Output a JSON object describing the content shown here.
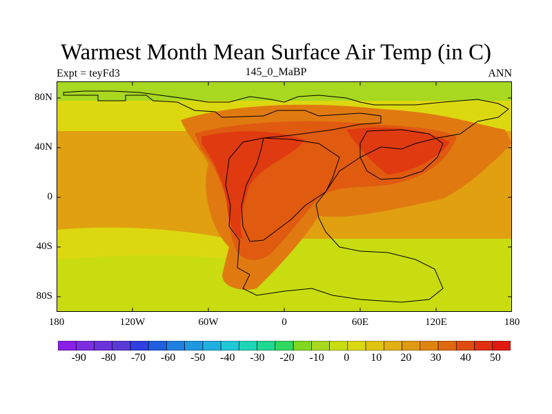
{
  "title": "Warmest Month Mean Surface Air Temp (in C)",
  "subtitle_left": "Expt = teyFd3",
  "subtitle_center": "145_0_MaBP",
  "subtitle_right": "ANN",
  "lat_labels": [
    "80N",
    "40N",
    "0",
    "40S",
    "80S"
  ],
  "lon_labels": [
    "180",
    "120W",
    "60W",
    "0",
    "60E",
    "120E",
    "180"
  ],
  "colorbar": {
    "labels": [
      "-90",
      "-80",
      "-70",
      "-60",
      "-50",
      "-40",
      "-30",
      "-20",
      "-10",
      "0",
      "10",
      "20",
      "30",
      "40",
      "50"
    ],
    "colors": [
      "#8a1fe6",
      "#7a2ee0",
      "#6a33dc",
      "#5a3ad6",
      "#2f3fe0",
      "#1f60e0",
      "#1f80e0",
      "#1f98e0",
      "#20b0e0",
      "#20c8d8",
      "#20d6b8",
      "#20d890",
      "#30d860",
      "#80d820",
      "#a8d820",
      "#c8dc10",
      "#dcd810",
      "#e0c410",
      "#e0b010",
      "#e09a10",
      "#e08410",
      "#e06810",
      "#e04c10",
      "#e03010",
      "#e01a10"
    ]
  },
  "map_colors": {
    "ocean": "#e0a010",
    "pole": "#c8d818",
    "highlat": "#a8d820",
    "warm": "#e07a10",
    "hot": "#e04c10",
    "hottest": "#e03010"
  }
}
